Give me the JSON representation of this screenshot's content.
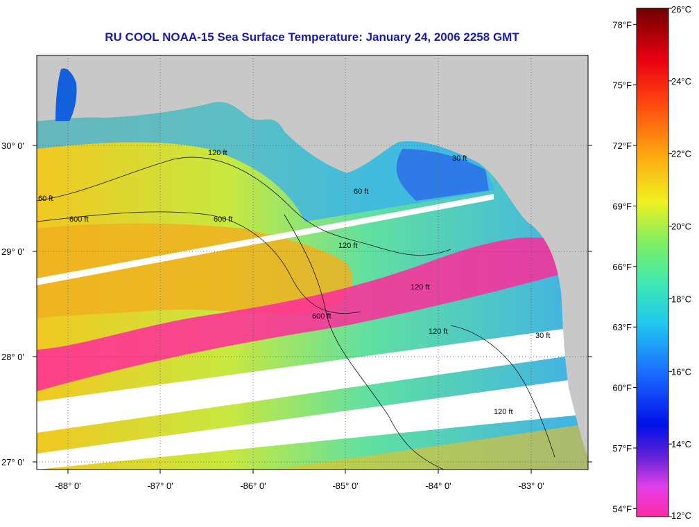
{
  "title": "RU COOL  NOAA-15  Sea Surface Temperature:  January 24, 2006 2258 GMT",
  "map": {
    "lon_labels": [
      "-88° 0'",
      "-87° 0'",
      "-86° 0'",
      "-85° 0'",
      "-84° 0'",
      "-83° 0'"
    ],
    "lat_labels": [
      "30° 0'",
      "29° 0'",
      "28° 0'",
      "27° 0'"
    ],
    "contour_labels": [
      "60 ft",
      "600 ft",
      "600 ft",
      "120 ft",
      "60 ft",
      "30 ft",
      "120 ft",
      "120 ft",
      "120 ft",
      "30 ft",
      "120 ft",
      "600 ft"
    ],
    "colors": {
      "land": "#c8c8c8",
      "no_data": "#ffffff",
      "grid": "#555555"
    }
  },
  "colorbar": {
    "fahrenheit_labels": [
      "78°F",
      "75°F",
      "72°F",
      "69°F",
      "66°F",
      "63°F",
      "60°F",
      "57°F",
      "54°F"
    ],
    "celsius_labels": [
      "26°C",
      "24°C",
      "22°C",
      "20°C",
      "18°C",
      "16°C",
      "14°C",
      "12°C"
    ],
    "fahrenheit_values": [
      78,
      75,
      72,
      69,
      66,
      63,
      60,
      57,
      54
    ],
    "celsius_values": [
      26,
      24,
      22,
      20,
      18,
      16,
      14,
      12
    ],
    "range_c": [
      12,
      26
    ]
  }
}
